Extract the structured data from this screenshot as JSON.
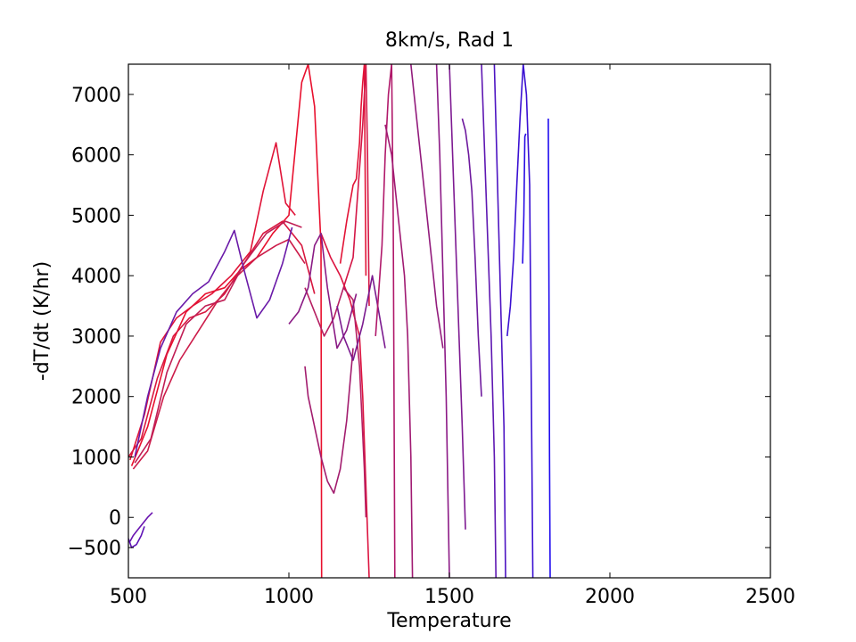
{
  "chart_data": {
    "type": "line",
    "title": "8km/s, Rad 1",
    "xlabel": "Temperature",
    "ylabel": "-dT/dt (K/hr)",
    "xlim": [
      500,
      2500
    ],
    "ylim": [
      -1000,
      7500
    ],
    "xticks": [
      500,
      1000,
      1500,
      2000,
      2500
    ],
    "yticks": [
      -500,
      0,
      1000,
      2000,
      3000,
      4000,
      5000,
      6000,
      7000
    ],
    "ytick_labels": [
      "−500",
      "0",
      "1000",
      "2000",
      "3000",
      "4000",
      "5000",
      "6000",
      "7000"
    ],
    "grid": false,
    "series": [
      {
        "color": "#e8102e",
        "x": [
          510,
          560,
          620,
          680,
          740,
          800,
          850,
          900,
          950,
          1000,
          1040,
          1060,
          1080,
          1100,
          1102
        ],
        "y": [
          850,
          1500,
          2700,
          3400,
          3700,
          3800,
          4100,
          4300,
          4700,
          5000,
          7200,
          7500,
          6800,
          4500,
          -1000
        ]
      },
      {
        "color": "#e01438",
        "x": [
          505,
          550,
          600,
          650,
          700,
          760,
          820,
          880,
          920,
          960,
          990,
          1020
        ],
        "y": [
          950,
          1700,
          2900,
          3300,
          3500,
          3700,
          4000,
          4400,
          5400,
          6200,
          5200,
          5000
        ]
      },
      {
        "color": "#d8183f",
        "x": [
          500,
          540,
          590,
          640,
          690,
          740,
          800,
          860,
          920,
          980,
          1040,
          1080
        ],
        "y": [
          1000,
          1300,
          2300,
          3000,
          3300,
          3400,
          3700,
          4200,
          4700,
          4900,
          4500,
          3700
        ]
      },
      {
        "color": "#cc1c4a",
        "x": [
          515,
          560,
          610,
          660,
          720,
          780,
          840,
          900,
          960,
          1000,
          1050
        ],
        "y": [
          800,
          1100,
          2000,
          2600,
          3100,
          3600,
          4000,
          4300,
          4500,
          4600,
          4200
        ]
      },
      {
        "color": "#c01e55",
        "x": [
          520,
          570,
          620,
          680,
          740,
          800,
          860,
          930,
          990,
          1040
        ],
        "y": [
          900,
          1300,
          2400,
          3200,
          3500,
          3600,
          4200,
          4700,
          4900,
          4800
        ]
      },
      {
        "color": "#6a1aa8",
        "x": [
          520,
          560,
          600,
          650,
          700,
          750,
          800,
          830,
          860,
          900,
          940,
          980,
          1010
        ],
        "y": [
          1000,
          2000,
          2800,
          3400,
          3700,
          3900,
          4400,
          4750,
          4100,
          3300,
          3600,
          4200,
          4800
        ]
      },
      {
        "color": "#e21336",
        "x": [
          1160,
          1180,
          1200,
          1210,
          1220,
          1225,
          1230,
          1235,
          1240
        ],
        "y": [
          4200,
          4900,
          5500,
          5600,
          6200,
          6800,
          7200,
          7500,
          4000
        ]
      },
      {
        "color": "#dc1440",
        "x": [
          1100,
          1130,
          1160,
          1190,
          1220,
          1230,
          1240,
          1250
        ],
        "y": [
          4700,
          4300,
          4000,
          3600,
          3000,
          2000,
          500,
          -1000
        ]
      },
      {
        "color": "#d41646",
        "x": [
          1170,
          1200,
          1230,
          1240,
          1245,
          1250
        ],
        "y": [
          3800,
          4300,
          6500,
          7500,
          6000,
          3500
        ]
      },
      {
        "color": "#b61f62",
        "x": [
          1050,
          1080,
          1110,
          1140,
          1170,
          1200,
          1220,
          1235,
          1240
        ],
        "y": [
          3800,
          3400,
          3000,
          3300,
          3800,
          3600,
          2500,
          800,
          0
        ]
      },
      {
        "color": "#a21c6e",
        "x": [
          1050,
          1060,
          1080,
          1100,
          1120,
          1140,
          1160,
          1180,
          1200
        ],
        "y": [
          2500,
          2000,
          1500,
          1000,
          600,
          400,
          800,
          1600,
          2800
        ]
      },
      {
        "color": "#8a1a84",
        "x": [
          1000,
          1030,
          1060,
          1080,
          1100,
          1120,
          1150,
          1180,
          1210
        ],
        "y": [
          3200,
          3400,
          3800,
          4500,
          4700,
          3800,
          2800,
          3100,
          3700
        ]
      },
      {
        "color": "#7b1a8f",
        "x": [
          1150,
          1170,
          1200,
          1230,
          1260,
          1280,
          1300
        ],
        "y": [
          3500,
          3000,
          2600,
          3200,
          4000,
          3400,
          2800
        ]
      },
      {
        "color": "#b0186a",
        "x": [
          1270,
          1290,
          1300,
          1310,
          1320,
          1325,
          1330
        ],
        "y": [
          3000,
          4500,
          6000,
          7000,
          7500,
          5000,
          -1000
        ]
      },
      {
        "color": "#a01a72",
        "x": [
          1300,
          1320,
          1340,
          1360,
          1370,
          1380,
          1385
        ],
        "y": [
          6500,
          6000,
          5000,
          4000,
          3000,
          1000,
          -1000
        ]
      },
      {
        "color": "#921b7c",
        "x": [
          1380,
          1400,
          1420,
          1440,
          1460,
          1480
        ],
        "y": [
          7500,
          6500,
          5500,
          4500,
          3500,
          2800
        ]
      },
      {
        "color": "#8c1a86",
        "x": [
          1460,
          1470,
          1480,
          1490,
          1495,
          1500
        ],
        "y": [
          7500,
          6000,
          4000,
          2000,
          500,
          -1000
        ]
      },
      {
        "color": "#7e1a92",
        "x": [
          1500,
          1510,
          1520,
          1530,
          1540,
          1550
        ],
        "y": [
          7500,
          6000,
          4500,
          3000,
          1500,
          -200
        ]
      },
      {
        "color": "#6e1a9e",
        "x": [
          1540,
          1550,
          1560,
          1570,
          1580,
          1590,
          1600
        ],
        "y": [
          6600,
          6400,
          6000,
          5400,
          4300,
          3000,
          2000
        ]
      },
      {
        "color": "#5e17b2",
        "x": [
          1600,
          1610,
          1620,
          1630,
          1640,
          1645
        ],
        "y": [
          7500,
          6000,
          4500,
          3000,
          1000,
          -1000
        ]
      },
      {
        "color": "#4d14c2",
        "x": [
          1640,
          1650,
          1660,
          1670,
          1675
        ],
        "y": [
          7500,
          5500,
          3500,
          1500,
          -1000
        ]
      },
      {
        "color": "#3a10d2",
        "x": [
          1680,
          1690,
          1700,
          1710,
          1720,
          1730,
          1740,
          1750,
          1760
        ],
        "y": [
          3000,
          3500,
          4300,
          5500,
          6600,
          7500,
          7000,
          5500,
          -1000
        ]
      },
      {
        "color": "#2a0de4",
        "x": [
          1728,
          1732,
          1735,
          1738
        ],
        "y": [
          4200,
          5000,
          6300,
          6350
        ]
      },
      {
        "color": "#1f0bef",
        "x": [
          1808,
          1810,
          1812,
          1814
        ],
        "y": [
          6600,
          4000,
          1000,
          -1000
        ]
      },
      {
        "color": "#6a14b0",
        "x": [
          505,
          515,
          530,
          545,
          560,
          575
        ],
        "y": [
          -400,
          -300,
          -200,
          -100,
          0,
          80
        ]
      },
      {
        "color": "#5e12b6",
        "x": [
          500,
          510,
          525,
          540,
          550
        ],
        "y": [
          -350,
          -500,
          -450,
          -300,
          -150
        ]
      }
    ]
  }
}
